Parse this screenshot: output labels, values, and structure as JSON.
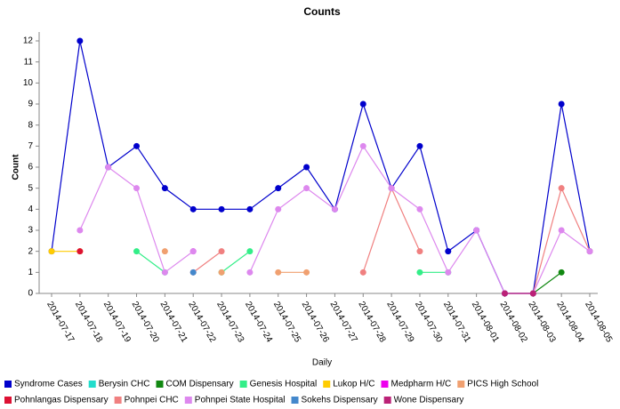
{
  "chart_data": {
    "type": "line",
    "title": "Counts",
    "x_label": "Daily",
    "y_label": "Count",
    "categories": [
      "2014-07-17",
      "2014-07-18",
      "2014-07-19",
      "2014-07-20",
      "2014-07-21",
      "2014-07-22",
      "2014-07-23",
      "2014-07-24",
      "2014-07-25",
      "2014-07-26",
      "2014-07-27",
      "2014-07-28",
      "2014-07-29",
      "2014-07-30",
      "2014-07-31",
      "2014-08-01",
      "2014-08-02",
      "2014-08-03",
      "2014-08-04",
      "2014-08-05"
    ],
    "ylim": [
      0,
      12
    ],
    "yticks": [
      0,
      1,
      2,
      3,
      4,
      5,
      6,
      7,
      8,
      9,
      10,
      11,
      12
    ],
    "series": [
      {
        "name": "Syndrome Cases",
        "color": "#0000cc",
        "values": [
          2,
          12,
          6,
          7,
          5,
          4,
          4,
          4,
          5,
          6,
          4,
          9,
          5,
          7,
          2,
          3,
          0,
          0,
          9,
          2
        ]
      },
      {
        "name": "Berysin CHC",
        "color": "#22ddcc",
        "values": [
          null,
          null,
          null,
          null,
          null,
          null,
          null,
          null,
          null,
          null,
          null,
          null,
          null,
          null,
          null,
          null,
          null,
          null,
          null,
          null
        ]
      },
      {
        "name": "COM Dispensary",
        "color": "#118811",
        "values": [
          null,
          null,
          null,
          null,
          null,
          null,
          null,
          null,
          null,
          null,
          null,
          null,
          null,
          null,
          null,
          null,
          null,
          0,
          1,
          null
        ]
      },
      {
        "name": "Genesis Hospital",
        "color": "#33ee88",
        "values": [
          null,
          null,
          null,
          2,
          1,
          null,
          1,
          2,
          null,
          null,
          null,
          null,
          null,
          1,
          1,
          null,
          null,
          null,
          null,
          null
        ]
      },
      {
        "name": "Lukop H/C",
        "color": "#ffcc00",
        "values": [
          2,
          2,
          null,
          null,
          null,
          null,
          null,
          null,
          null,
          null,
          null,
          null,
          null,
          null,
          null,
          null,
          null,
          null,
          null,
          null
        ]
      },
      {
        "name": "Medpharm H/C",
        "color": "#ee00ee",
        "values": [
          null,
          null,
          null,
          null,
          null,
          2,
          null,
          null,
          null,
          null,
          null,
          null,
          null,
          null,
          null,
          null,
          null,
          null,
          null,
          null
        ]
      },
      {
        "name": "PICS High School",
        "color": "#f0a070",
        "values": [
          null,
          null,
          null,
          null,
          2,
          null,
          1,
          null,
          1,
          1,
          null,
          null,
          null,
          null,
          null,
          null,
          null,
          null,
          null,
          null
        ]
      },
      {
        "name": "Pohnlangas Dispensary",
        "color": "#dd1133",
        "values": [
          null,
          2,
          null,
          null,
          null,
          null,
          null,
          null,
          null,
          null,
          null,
          null,
          null,
          null,
          null,
          null,
          null,
          null,
          null,
          null
        ]
      },
      {
        "name": "Pohnpei CHC",
        "color": "#f08080",
        "values": [
          null,
          null,
          null,
          null,
          null,
          1,
          2,
          null,
          null,
          null,
          null,
          1,
          5,
          2,
          null,
          null,
          null,
          0,
          5,
          2
        ]
      },
      {
        "name": "Pohnpei State Hospital",
        "color": "#dd88ee",
        "values": [
          null,
          3,
          6,
          5,
          1,
          2,
          null,
          1,
          4,
          5,
          4,
          7,
          5,
          4,
          1,
          3,
          0,
          0,
          3,
          2
        ]
      },
      {
        "name": "Sokehs Dispensary",
        "color": "#4488cc",
        "values": [
          null,
          null,
          null,
          null,
          null,
          1,
          null,
          null,
          null,
          null,
          null,
          null,
          null,
          null,
          null,
          null,
          null,
          null,
          null,
          null
        ]
      },
      {
        "name": "Wone Dispensary",
        "color": "#bb2277",
        "values": [
          null,
          null,
          null,
          null,
          null,
          null,
          null,
          null,
          null,
          null,
          null,
          null,
          null,
          null,
          null,
          null,
          0,
          0,
          null,
          null
        ]
      }
    ]
  }
}
